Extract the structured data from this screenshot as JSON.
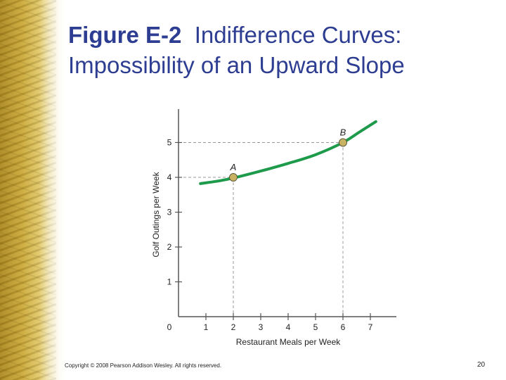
{
  "slide": {
    "title_bold": "Figure E-2",
    "title_rest": "Indifference Curves:",
    "title_line2": "Impossibility of an Upward Slope",
    "copyright": "Copyright © 2008 Pearson Addison Wesley. All rights reserved.",
    "page_number": "20"
  },
  "colors": {
    "title": "#2d3d92",
    "curve": "#1e9a4b",
    "point_fill": "#c9b262",
    "axis": "#555555"
  },
  "chart_data": {
    "type": "line",
    "title": "",
    "xlabel": "Restaurant Meals per Week",
    "ylabel": "Golf Outings per Week",
    "x_ticks": [
      0,
      1,
      2,
      3,
      4,
      5,
      6,
      7
    ],
    "y_ticks": [
      1,
      2,
      3,
      4,
      5
    ],
    "xlim": [
      0,
      8
    ],
    "ylim": [
      0,
      6.2
    ],
    "grid": false,
    "series": [
      {
        "x": [
          0.8,
          1.5,
          2,
          3,
          4,
          5,
          6,
          6.6,
          7.2
        ],
        "y": [
          3.82,
          3.9,
          3.98,
          4.18,
          4.4,
          4.65,
          5.0,
          5.3,
          5.6
        ]
      }
    ],
    "points": [
      {
        "label": "A",
        "x": 2,
        "y": 4
      },
      {
        "label": "B",
        "x": 6,
        "y": 5
      }
    ],
    "guide_lines": "dashed to both axes from each labeled point"
  }
}
